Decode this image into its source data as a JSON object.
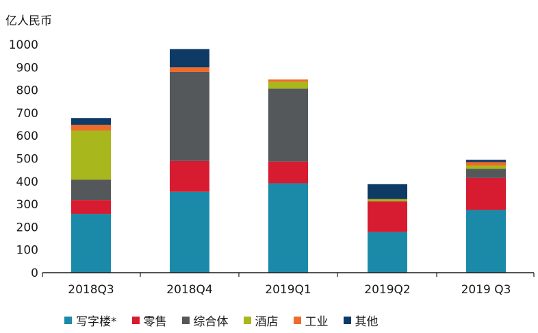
{
  "chart_data": {
    "type": "bar",
    "stacked": true,
    "unit_label": "亿人民币",
    "categories": [
      "2018Q3",
      "2018Q4",
      "2019Q1",
      "2019Q2",
      "2019 Q3"
    ],
    "ylim": [
      0,
      1000
    ],
    "yticks": [
      0,
      100,
      200,
      300,
      400,
      500,
      600,
      700,
      800,
      900,
      1000
    ],
    "grid": false,
    "legend_position": "bottom",
    "series": [
      {
        "name": "写字楼*",
        "color": "#1b8aa8",
        "values": [
          258,
          355,
          392,
          178,
          275
        ]
      },
      {
        "name": "零售",
        "color": "#d71b30",
        "values": [
          60,
          135,
          95,
          135,
          140
        ]
      },
      {
        "name": "综合体",
        "color": "#55585b",
        "values": [
          90,
          390,
          320,
          0,
          40
        ]
      },
      {
        "name": "酒店",
        "color": "#a8b71b",
        "values": [
          215,
          0,
          30,
          10,
          15
        ]
      },
      {
        "name": "工业",
        "color": "#ee6b2c",
        "values": [
          25,
          20,
          10,
          0,
          15
        ]
      },
      {
        "name": "其他",
        "color": "#0e3a66",
        "values": [
          30,
          80,
          0,
          65,
          10
        ]
      }
    ]
  }
}
